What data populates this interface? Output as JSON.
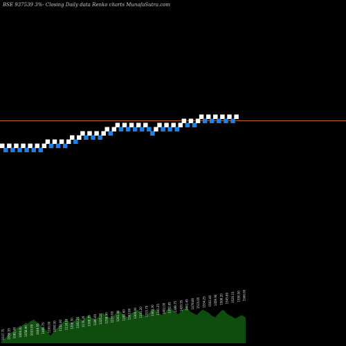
{
  "chart_data": {
    "type": "renko",
    "title": "BSE 937539 3%- Closing Daily data Renko charts MunafaSutra.com",
    "reference_line": {
      "color": "#c05a1e"
    },
    "colors": {
      "up": "#ffffff",
      "down": "#1e7fe6",
      "volume": "#0f4d0f"
    },
    "bricks": [
      {
        "dir": "up",
        "level": 0
      },
      {
        "dir": "down",
        "level": -1
      },
      {
        "dir": "up",
        "level": 0
      },
      {
        "dir": "down",
        "level": -1
      },
      {
        "dir": "up",
        "level": 0
      },
      {
        "dir": "down",
        "level": -1
      },
      {
        "dir": "up",
        "level": 0
      },
      {
        "dir": "down",
        "level": -1
      },
      {
        "dir": "up",
        "level": 0
      },
      {
        "dir": "down",
        "level": -1
      },
      {
        "dir": "up",
        "level": 0
      },
      {
        "dir": "down",
        "level": -1
      },
      {
        "dir": "up",
        "level": 0
      },
      {
        "dir": "up",
        "level": 1
      },
      {
        "dir": "down",
        "level": 0
      },
      {
        "dir": "up",
        "level": 1
      },
      {
        "dir": "down",
        "level": 0
      },
      {
        "dir": "up",
        "level": 1
      },
      {
        "dir": "down",
        "level": 0
      },
      {
        "dir": "up",
        "level": 1
      },
      {
        "dir": "up",
        "level": 2
      },
      {
        "dir": "down",
        "level": 1
      },
      {
        "dir": "up",
        "level": 2
      },
      {
        "dir": "up",
        "level": 3
      },
      {
        "dir": "down",
        "level": 2
      },
      {
        "dir": "up",
        "level": 3
      },
      {
        "dir": "down",
        "level": 2
      },
      {
        "dir": "up",
        "level": 3
      },
      {
        "dir": "down",
        "level": 2
      },
      {
        "dir": "up",
        "level": 3
      },
      {
        "dir": "up",
        "level": 4
      },
      {
        "dir": "down",
        "level": 3
      },
      {
        "dir": "up",
        "level": 4
      },
      {
        "dir": "up",
        "level": 5
      },
      {
        "dir": "down",
        "level": 4
      },
      {
        "dir": "up",
        "level": 5
      },
      {
        "dir": "down",
        "level": 4
      },
      {
        "dir": "up",
        "level": 5
      },
      {
        "dir": "down",
        "level": 4
      },
      {
        "dir": "up",
        "level": 5
      },
      {
        "dir": "down",
        "level": 4
      },
      {
        "dir": "up",
        "level": 5
      },
      {
        "dir": "down",
        "level": 4
      },
      {
        "dir": "down",
        "level": 3
      },
      {
        "dir": "up",
        "level": 4
      },
      {
        "dir": "up",
        "level": 5
      },
      {
        "dir": "down",
        "level": 4
      },
      {
        "dir": "up",
        "level": 5
      },
      {
        "dir": "down",
        "level": 4
      },
      {
        "dir": "up",
        "level": 5
      },
      {
        "dir": "down",
        "level": 4
      },
      {
        "dir": "up",
        "level": 5
      },
      {
        "dir": "up",
        "level": 6
      },
      {
        "dir": "down",
        "level": 5
      },
      {
        "dir": "up",
        "level": 6
      },
      {
        "dir": "down",
        "level": 5
      },
      {
        "dir": "up",
        "level": 6
      },
      {
        "dir": "up",
        "level": 7
      },
      {
        "dir": "down",
        "level": 6
      },
      {
        "dir": "up",
        "level": 7
      },
      {
        "dir": "down",
        "level": 6
      },
      {
        "dir": "up",
        "level": 7
      },
      {
        "dir": "down",
        "level": 6
      },
      {
        "dir": "up",
        "level": 7
      },
      {
        "dir": "down",
        "level": 6
      },
      {
        "dir": "up",
        "level": 7
      },
      {
        "dir": "down",
        "level": 6
      },
      {
        "dir": "up",
        "level": 7
      }
    ],
    "volume_profile": [
      4,
      6,
      10,
      14,
      18,
      20,
      22,
      26,
      30,
      28,
      32,
      35,
      38,
      36,
      40,
      42,
      44,
      40,
      38,
      34,
      30,
      28,
      24,
      20,
      14,
      18,
      22,
      26,
      30,
      34,
      38,
      42,
      44,
      40,
      36,
      38,
      42,
      46,
      48,
      44,
      42,
      46,
      50,
      52,
      48,
      46,
      44,
      46,
      50,
      54,
      56,
      52,
      50,
      48,
      46,
      50,
      54,
      58,
      60,
      56,
      52,
      50,
      48,
      52,
      56,
      58,
      60,
      62,
      58,
      54,
      52,
      50,
      54,
      58,
      62,
      64,
      60,
      56,
      54,
      52,
      56,
      60,
      64,
      66,
      62,
      58,
      56,
      54,
      58,
      62,
      64,
      66,
      62,
      58,
      56,
      54,
      52,
      56,
      60,
      62,
      60,
      58,
      56,
      52,
      50,
      48,
      52,
      56,
      60,
      62,
      58,
      54,
      52,
      50,
      48,
      46,
      48,
      50,
      52,
      50,
      48
    ],
    "volume_labels": [
      "1037.75",
      "1056.55",
      "1082.40",
      "1060.60",
      "1058.90",
      "1033.95",
      "1049.55",
      "1095.75",
      "1100.00",
      "1090.00",
      "1152.00",
      "1118.10",
      "1208.30",
      "1162.15",
      "1176.20",
      "1168.35",
      "1186.60",
      "1225.25",
      "1258.90",
      "1239.00",
      "1261.40",
      "1282.60",
      "1303.90",
      "1300.00",
      "1341.20",
      "1315.75",
      "1362.30",
      "1381.25",
      "1402.00",
      "1372.85",
      "1389.75",
      "1420.55",
      "1441.45",
      "1478.80",
      "1515.05",
      "1534.25",
      "1502.40",
      "1459.90",
      "1508.20",
      "1545.60",
      "1520.15",
      "1550.50",
      "1566.00"
    ]
  }
}
